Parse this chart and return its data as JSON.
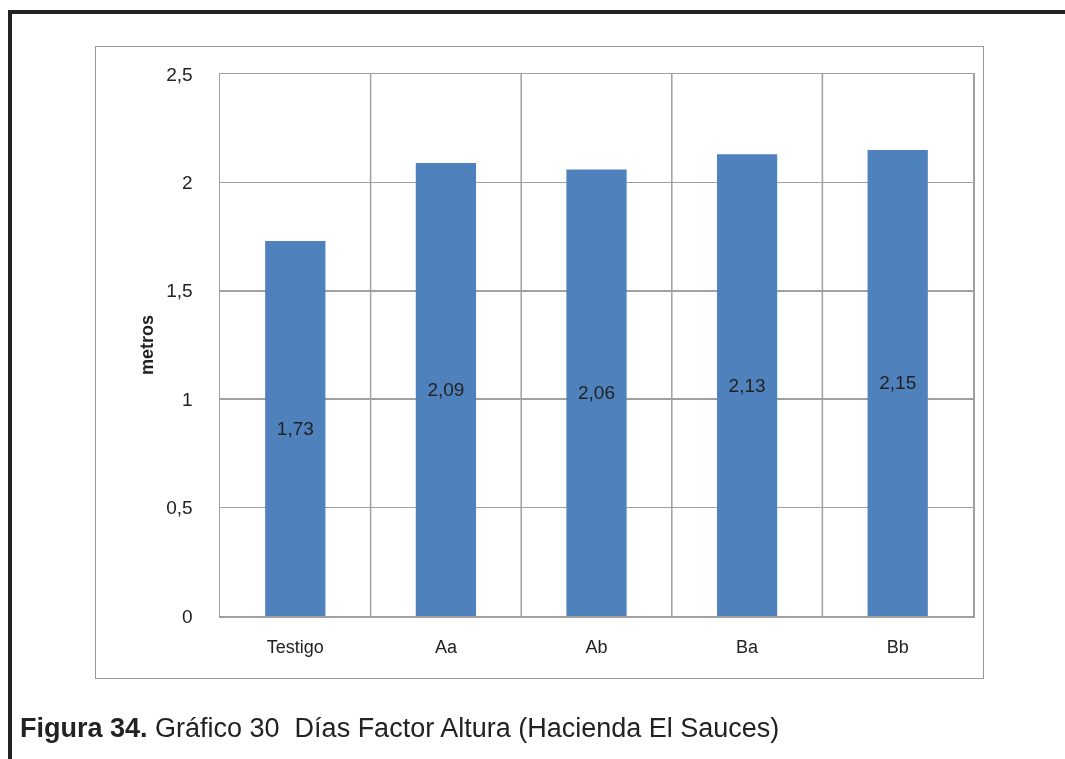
{
  "chart_data": {
    "type": "bar",
    "categories": [
      "Testigo",
      "Aa",
      "Ab",
      "Ba",
      "Bb"
    ],
    "values": [
      1.73,
      2.09,
      2.06,
      2.13,
      2.15
    ],
    "value_labels": [
      "1,73",
      "2,09",
      "2,06",
      "2,13",
      "2,15"
    ],
    "color": "#4f81bd",
    "ylabel": "metros",
    "ylim": [
      0,
      2.5
    ],
    "yticks": [
      0,
      {
        "value": 0.5,
        "label": "0,5"
      },
      1,
      {
        "value": 1.5,
        "label": "1,5"
      },
      2,
      {
        "value": 2.5,
        "label": "2,5"
      }
    ],
    "grid": true,
    "annotations": [
      "Figura 34.",
      "Gráfico 30  Días Factor Altura (Hacienda El Sauces)"
    ]
  }
}
